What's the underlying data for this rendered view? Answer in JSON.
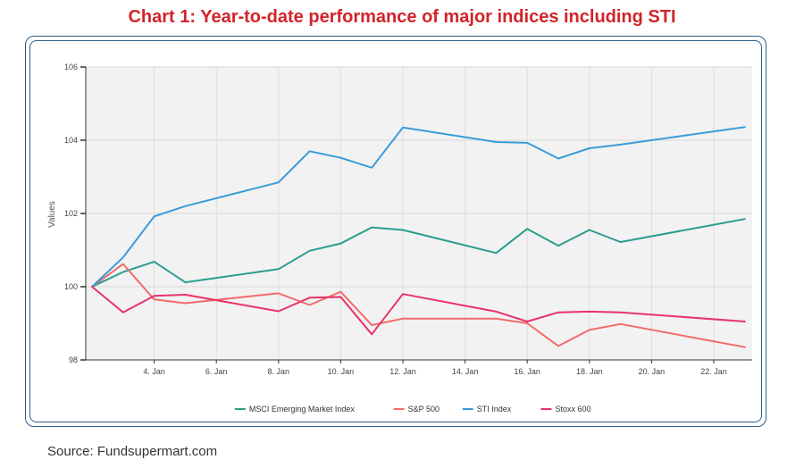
{
  "page": {
    "title": "Chart 1: Year-to-date performance of major indices including STI",
    "source": "Source: Fundsupermart.com"
  },
  "chart_data": {
    "type": "line",
    "title": "Chart 1: Year-to-date performance of major indices including STI",
    "xlabel": "",
    "ylabel": "Values",
    "x": [
      "2 Jan",
      "3 Jan",
      "4 Jan",
      "5 Jan",
      "8 Jan",
      "9 Jan",
      "10 Jan",
      "11 Jan",
      "12 Jan",
      "15 Jan",
      "16 Jan",
      "17 Jan",
      "18 Jan",
      "19 Jan",
      "22 Jan",
      "23 Jan"
    ],
    "x_ticks": [
      "4. Jan",
      "6. Jan",
      "8. Jan",
      "10. Jan",
      "12. Jan",
      "14. Jan",
      "16. Jan",
      "18. Jan",
      "20. Jan",
      "22. Jan"
    ],
    "y_ticks": [
      98,
      100,
      102,
      104,
      106
    ],
    "ylim": [
      98,
      106
    ],
    "grid": true,
    "legend_position": "bottom",
    "series": [
      {
        "name": "MSCI Emerging Market Index",
        "color": "#2a9d8f",
        "points": [
          [
            "2 Jan",
            100
          ],
          [
            "3 Jan",
            100.4
          ],
          [
            "4 Jan",
            100.68
          ],
          [
            "5 Jan",
            100.12
          ],
          [
            "8 Jan",
            100.48
          ],
          [
            "9 Jan",
            100.98
          ],
          [
            "10 Jan",
            101.18
          ],
          [
            "11 Jan",
            101.62
          ],
          [
            "12 Jan",
            101.55
          ],
          [
            "15 Jan",
            100.92
          ],
          [
            "16 Jan",
            101.58
          ],
          [
            "17 Jan",
            101.12
          ],
          [
            "18 Jan",
            101.55
          ],
          [
            "19 Jan",
            101.22
          ],
          [
            "23 Jan",
            101.85
          ]
        ]
      },
      {
        "name": "S&P 500",
        "color": "#f26b6b",
        "points": [
          [
            "2 Jan",
            100
          ],
          [
            "3 Jan",
            100.62
          ],
          [
            "4 Jan",
            99.65
          ],
          [
            "5 Jan",
            99.55
          ],
          [
            "8 Jan",
            99.82
          ],
          [
            "9 Jan",
            99.5
          ],
          [
            "10 Jan",
            99.86
          ],
          [
            "11 Jan",
            98.95
          ],
          [
            "12 Jan",
            99.13
          ],
          [
            "15 Jan",
            99.13
          ],
          [
            "16 Jan",
            99.0
          ],
          [
            "17 Jan",
            98.38
          ],
          [
            "18 Jan",
            98.82
          ],
          [
            "19 Jan",
            98.98
          ],
          [
            "23 Jan",
            98.35
          ]
        ]
      },
      {
        "name": "STI Index",
        "color": "#3a9bd9",
        "points": [
          [
            "2 Jan",
            100
          ],
          [
            "3 Jan",
            100.8
          ],
          [
            "4 Jan",
            101.92
          ],
          [
            "5 Jan",
            102.2
          ],
          [
            "8 Jan",
            102.85
          ],
          [
            "9 Jan",
            103.7
          ],
          [
            "10 Jan",
            103.52
          ],
          [
            "11 Jan",
            103.25
          ],
          [
            "12 Jan",
            104.35
          ],
          [
            "15 Jan",
            103.95
          ],
          [
            "16 Jan",
            103.93
          ],
          [
            "17 Jan",
            103.5
          ],
          [
            "18 Jan",
            103.78
          ],
          [
            "19 Jan",
            103.88
          ],
          [
            "23 Jan",
            104.36
          ]
        ]
      },
      {
        "name": "Stoxx 600",
        "color": "#e8336b",
        "points": [
          [
            "2 Jan",
            100
          ],
          [
            "3 Jan",
            99.3
          ],
          [
            "4 Jan",
            99.75
          ],
          [
            "5 Jan",
            99.78
          ],
          [
            "8 Jan",
            99.33
          ],
          [
            "9 Jan",
            99.7
          ],
          [
            "10 Jan",
            99.72
          ],
          [
            "11 Jan",
            98.7
          ],
          [
            "12 Jan",
            99.8
          ],
          [
            "15 Jan",
            99.32
          ],
          [
            "16 Jan",
            99.05
          ],
          [
            "17 Jan",
            99.3
          ],
          [
            "18 Jan",
            99.32
          ],
          [
            "19 Jan",
            99.3
          ],
          [
            "23 Jan",
            99.05
          ]
        ]
      }
    ]
  }
}
